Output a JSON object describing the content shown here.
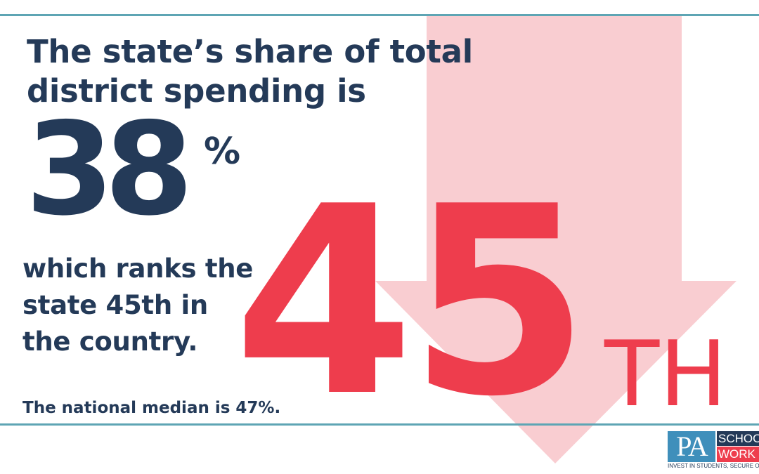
{
  "headline": {
    "line1": "The state’s share of total",
    "line2": "district spending is"
  },
  "state_share": {
    "value": "38",
    "unit": "%"
  },
  "rank_text": {
    "line1": "which ranks the",
    "line2": "state 45th in",
    "line3": "the country."
  },
  "rank_graphic": {
    "number": "45",
    "suffix": "TH"
  },
  "national_median": "The national median is 47%.",
  "logo": {
    "pa": "PA",
    "schools": "SCHOOLS",
    "work": "WORK",
    "tagline": "INVEST IN STUDENTS, SECURE OUR FUTURE"
  },
  "colors": {
    "navy": "#243a58",
    "red": "#ee3d4d",
    "arrow_pink": "#f9cdd1",
    "rule_teal": "#5ea5b4",
    "logo_blue": "#3f8fbb"
  },
  "icons": {
    "arrow": "down-arrow-icon"
  }
}
